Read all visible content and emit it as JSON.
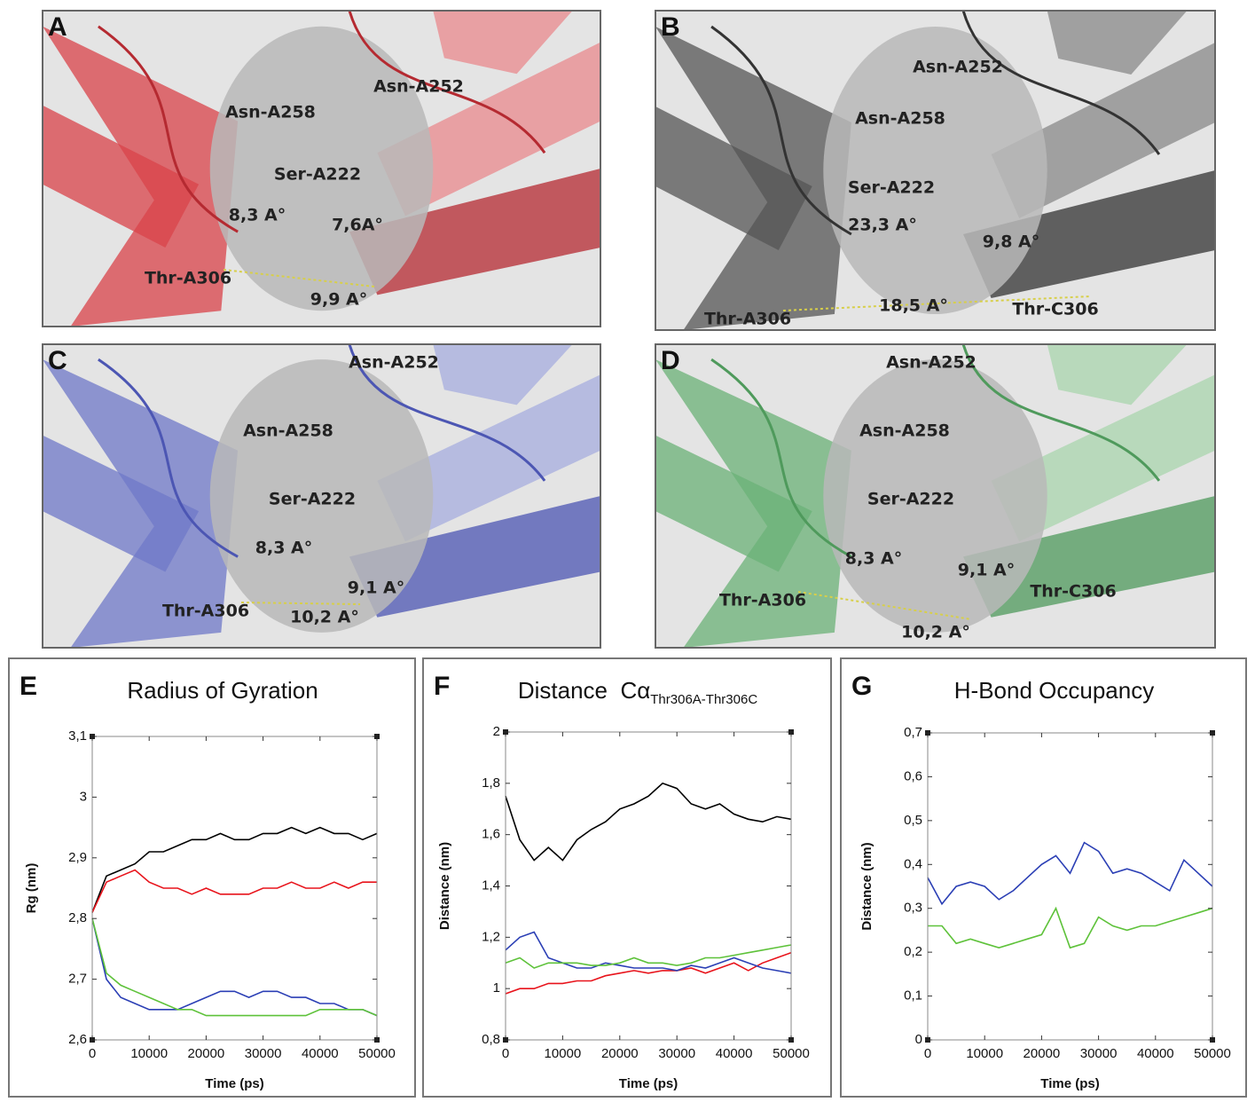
{
  "panels": [
    {
      "letter": "A",
      "labels": [
        "Asn-A252",
        "Asn-A258",
        "Ser-A222",
        "8,3 A°",
        "7,6A°",
        "Thr-A306",
        "9,9 A°"
      ]
    },
    {
      "letter": "B",
      "labels": [
        "Asn-A252",
        "Asn-A258",
        "Ser-A222",
        "23,3 A°",
        "9,8 A°",
        "Thr-A306",
        "18,5 A°",
        "Thr-C306"
      ]
    },
    {
      "letter": "C",
      "labels": [
        "Asn-A252",
        "Asn-A258",
        "Ser-A222",
        "8,3 A°",
        "9,1 A°",
        "Thr-A306",
        "10,2 A°"
      ]
    },
    {
      "letter": "D",
      "labels": [
        "Asn-A252",
        "Asn-A258",
        "Ser-A222",
        "8,3 A°",
        "9,1 A°",
        "Thr-A306",
        "Thr-C306",
        "10,2 A°"
      ]
    }
  ],
  "chart_data": [
    {
      "type": "line",
      "letter": "E",
      "title": "Radius of Gyration",
      "x_label": "Time (ps)",
      "y_label": "Rg (nm)",
      "x": [
        0,
        2500,
        5000,
        7500,
        10000,
        12500,
        15000,
        17500,
        20000,
        22500,
        25000,
        27500,
        30000,
        32500,
        35000,
        37500,
        40000,
        42500,
        45000,
        47500,
        50000
      ],
      "xlim": [
        0,
        50000
      ],
      "xticks": [
        0,
        10000,
        20000,
        30000,
        40000,
        50000
      ],
      "ylim": [
        2.6,
        3.1
      ],
      "yticks": [
        {
          "value": 2.6,
          "label": "2,6"
        },
        {
          "value": 2.7,
          "label": "2,7"
        },
        {
          "value": 2.8,
          "label": "2,8"
        },
        {
          "value": 2.9,
          "label": "2,9"
        },
        3,
        {
          "value": 3.1,
          "label": "3,1"
        }
      ],
      "series": [
        {
          "color": "#000000",
          "values": [
            2.81,
            2.87,
            2.88,
            2.89,
            2.91,
            2.91,
            2.92,
            2.93,
            2.93,
            2.94,
            2.93,
            2.93,
            2.94,
            2.94,
            2.95,
            2.94,
            2.95,
            2.94,
            2.94,
            2.93,
            2.94
          ]
        },
        {
          "color": "#e8131b",
          "values": [
            2.81,
            2.86,
            2.87,
            2.88,
            2.86,
            2.85,
            2.85,
            2.84,
            2.85,
            2.84,
            2.84,
            2.84,
            2.85,
            2.85,
            2.86,
            2.85,
            2.85,
            2.86,
            2.85,
            2.86,
            2.86
          ]
        },
        {
          "color": "#2b3fb5",
          "values": [
            2.8,
            2.7,
            2.67,
            2.66,
            2.65,
            2.65,
            2.65,
            2.66,
            2.67,
            2.68,
            2.68,
            2.67,
            2.68,
            2.68,
            2.67,
            2.67,
            2.66,
            2.66,
            2.65,
            2.65,
            2.64
          ]
        },
        {
          "color": "#5ec23a",
          "values": [
            2.8,
            2.71,
            2.69,
            2.68,
            2.67,
            2.66,
            2.65,
            2.65,
            2.64,
            2.64,
            2.64,
            2.64,
            2.64,
            2.64,
            2.64,
            2.64,
            2.65,
            2.65,
            2.65,
            2.65,
            2.64
          ]
        }
      ]
    },
    {
      "type": "line",
      "letter": "F",
      "title": "Distance  Cα",
      "title_subscript": "Thr306A-Thr306C",
      "x_label": "Time (ps)",
      "y_label": "Distance (nm)",
      "x": [
        0,
        2500,
        5000,
        7500,
        10000,
        12500,
        15000,
        17500,
        20000,
        22500,
        25000,
        27500,
        30000,
        32500,
        35000,
        37500,
        40000,
        42500,
        45000,
        47500,
        50000
      ],
      "xlim": [
        0,
        50000
      ],
      "xticks": [
        0,
        10000,
        20000,
        30000,
        40000,
        50000
      ],
      "ylim": [
        0.8,
        2
      ],
      "yticks": [
        {
          "value": 0.8,
          "label": "0,8"
        },
        1,
        {
          "value": 1.2,
          "label": "1,2"
        },
        {
          "value": 1.4,
          "label": "1,4"
        },
        {
          "value": 1.6,
          "label": "1,6"
        },
        {
          "value": 1.8,
          "label": "1,8"
        },
        2
      ],
      "series": [
        {
          "color": "#000000",
          "values": [
            1.75,
            1.58,
            1.5,
            1.55,
            1.5,
            1.58,
            1.62,
            1.65,
            1.7,
            1.72,
            1.75,
            1.8,
            1.78,
            1.72,
            1.7,
            1.72,
            1.68,
            1.66,
            1.65,
            1.67,
            1.66
          ]
        },
        {
          "color": "#e8131b",
          "values": [
            0.98,
            1,
            1,
            1.02,
            1.02,
            1.03,
            1.03,
            1.05,
            1.06,
            1.07,
            1.06,
            1.07,
            1.07,
            1.08,
            1.06,
            1.08,
            1.1,
            1.07,
            1.1,
            1.12,
            1.14
          ]
        },
        {
          "color": "#2b3fb5",
          "values": [
            1.15,
            1.2,
            1.22,
            1.12,
            1.1,
            1.08,
            1.08,
            1.1,
            1.09,
            1.08,
            1.08,
            1.08,
            1.07,
            1.09,
            1.08,
            1.1,
            1.12,
            1.1,
            1.08,
            1.07,
            1.06
          ]
        },
        {
          "color": "#5ec23a",
          "values": [
            1.1,
            1.12,
            1.08,
            1.1,
            1.1,
            1.1,
            1.09,
            1.09,
            1.1,
            1.12,
            1.1,
            1.1,
            1.09,
            1.1,
            1.12,
            1.12,
            1.13,
            1.14,
            1.15,
            1.16,
            1.17
          ]
        }
      ]
    },
    {
      "type": "line",
      "letter": "G",
      "title": "H-Bond Occupancy",
      "x_label": "Time (ps)",
      "y_label": "Distance (nm)",
      "x": [
        0,
        2500,
        5000,
        7500,
        10000,
        12500,
        15000,
        17500,
        20000,
        22500,
        25000,
        27500,
        30000,
        32500,
        35000,
        37500,
        40000,
        42500,
        45000,
        47500,
        50000
      ],
      "xlim": [
        0,
        50000
      ],
      "xticks": [
        0,
        10000,
        20000,
        30000,
        40000,
        50000
      ],
      "ylim": [
        0,
        0.7
      ],
      "yticks": [
        0,
        {
          "value": 0.1,
          "label": "0,1"
        },
        {
          "value": 0.2,
          "label": "0,2"
        },
        {
          "value": 0.3,
          "label": "0,3"
        },
        {
          "value": 0.4,
          "label": "0,4"
        },
        {
          "value": 0.5,
          "label": "0,5"
        },
        {
          "value": 0.6,
          "label": "0,6"
        },
        {
          "value": 0.7,
          "label": "0,7"
        }
      ],
      "series": [
        {
          "color": "#2b3fb5",
          "values": [
            0.37,
            0.31,
            0.35,
            0.36,
            0.35,
            0.32,
            0.34,
            0.37,
            0.4,
            0.42,
            0.38,
            0.45,
            0.43,
            0.38,
            0.39,
            0.38,
            0.36,
            0.34,
            0.41,
            0.38,
            0.35
          ]
        },
        {
          "color": "#5ec23a",
          "values": [
            0.26,
            0.26,
            0.22,
            0.23,
            0.22,
            0.21,
            0.22,
            0.23,
            0.24,
            0.3,
            0.21,
            0.22,
            0.28,
            0.26,
            0.25,
            0.26,
            0.26,
            0.27,
            0.28,
            0.29,
            0.3
          ]
        }
      ]
    }
  ]
}
